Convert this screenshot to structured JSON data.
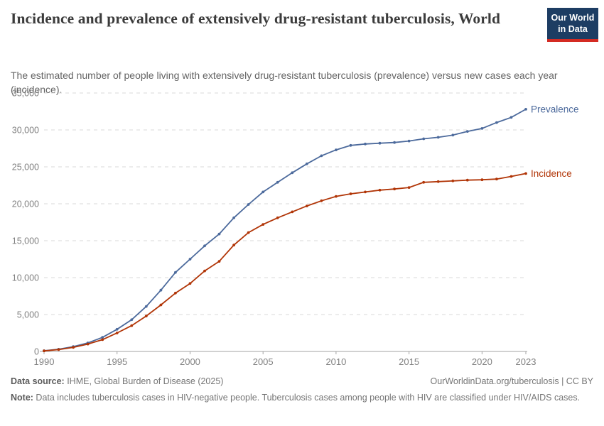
{
  "header": {
    "title": "Incidence and prevalence of extensively drug-resistant tuberculosis, World",
    "subtitle": "The estimated number of people living with extensively drug-resistant tuberculosis (prevalence) versus new cases each year (incidence).",
    "logo": {
      "line1": "Our World",
      "line2": "in Data"
    }
  },
  "chart_data": {
    "type": "line",
    "title": "Incidence and prevalence of extensively drug-resistant tuberculosis, World",
    "xlabel": "",
    "ylabel": "",
    "xlim": [
      1990,
      2023
    ],
    "ylim": [
      0,
      35000
    ],
    "grid": true,
    "legend_position": "right-end-labels",
    "xticks": [
      1990,
      1995,
      2000,
      2005,
      2010,
      2015,
      2020,
      2023
    ],
    "xtick_labels": [
      "1990",
      "1995",
      "2000",
      "2005",
      "2010",
      "2015",
      "2020",
      "2023"
    ],
    "yticks": [
      0,
      5000,
      10000,
      15000,
      20000,
      25000,
      30000,
      35000
    ],
    "ytick_labels": [
      "0",
      "5,000",
      "10,000",
      "15,000",
      "20,000",
      "25,000",
      "30,000",
      "35,000"
    ],
    "x": [
      1990,
      1991,
      1992,
      1993,
      1994,
      1995,
      1996,
      1997,
      1998,
      1999,
      2000,
      2001,
      2002,
      2003,
      2004,
      2005,
      2006,
      2007,
      2008,
      2009,
      2010,
      2011,
      2012,
      2013,
      2014,
      2015,
      2016,
      2017,
      2018,
      2019,
      2020,
      2021,
      2022,
      2023
    ],
    "series": [
      {
        "name": "Prevalence",
        "color": "#4c6a9c",
        "values": [
          100,
          300,
          650,
          1150,
          1900,
          3000,
          4300,
          6100,
          8300,
          10700,
          12500,
          14300,
          15900,
          18100,
          19900,
          21600,
          22900,
          24200,
          25400,
          26500,
          27300,
          27900,
          28100,
          28200,
          28300,
          28500,
          28800,
          29000,
          29300,
          29800,
          30200,
          31000,
          31700,
          32800
        ]
      },
      {
        "name": "Incidence",
        "color": "#b13507",
        "values": [
          80,
          250,
          550,
          1000,
          1600,
          2500,
          3500,
          4800,
          6300,
          7900,
          9200,
          10900,
          12200,
          14400,
          16100,
          17200,
          18100,
          18900,
          19700,
          20400,
          21000,
          21350,
          21600,
          21850,
          22000,
          22200,
          22900,
          23000,
          23100,
          23200,
          23250,
          23350,
          23700,
          24100
        ]
      }
    ],
    "colors": {
      "grid": "#d9d9d9",
      "axis": "#a3a3a3",
      "tick_label": "#818181"
    }
  },
  "footer": {
    "source_label": "Data source:",
    "source_text": " IHME, Global Burden of Disease (2025)",
    "link_text": "OurWorldinData.org/tuberculosis | CC BY",
    "note_label": "Note:",
    "note_text": " Data includes tuberculosis cases in HIV-negative people. Tuberculosis cases among people with HIV are classified under HIV/AIDS cases."
  }
}
